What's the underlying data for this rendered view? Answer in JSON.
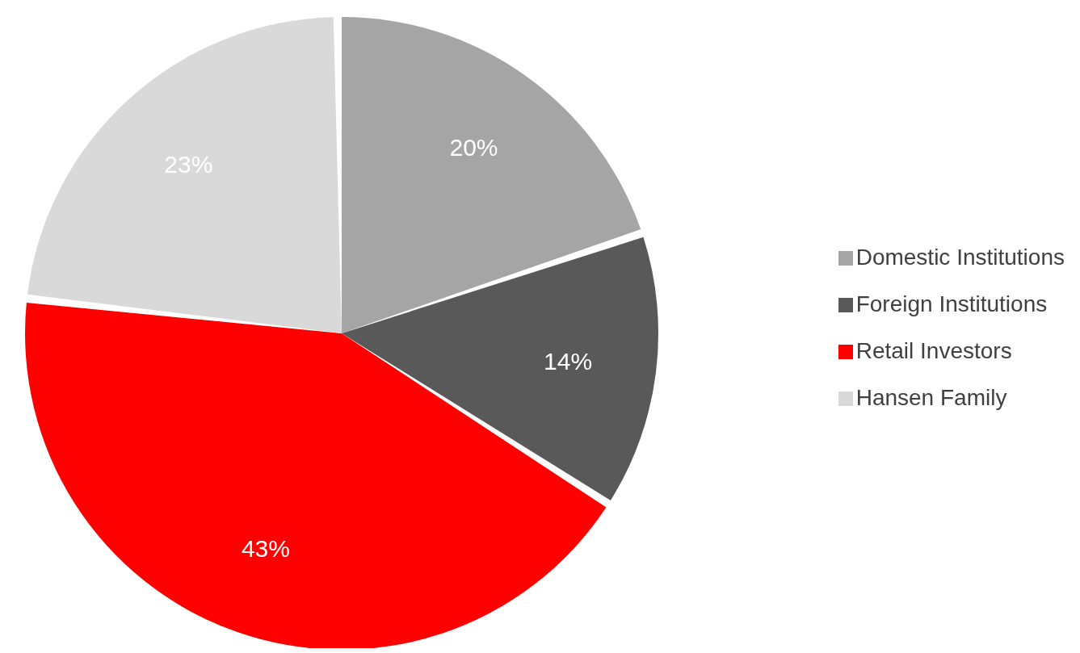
{
  "chart_data": {
    "type": "pie",
    "categories": [
      "Domestic Institutions",
      "Foreign Institutions",
      "Retail Investors",
      "Hansen Family"
    ],
    "values": [
      20,
      14,
      43,
      23
    ],
    "colors": [
      "#a5a5a5",
      "#595959",
      "#ff0000",
      "#d9d9d9"
    ],
    "value_labels": [
      "20%",
      "14%",
      "43%",
      "23%"
    ],
    "legend": "right"
  }
}
